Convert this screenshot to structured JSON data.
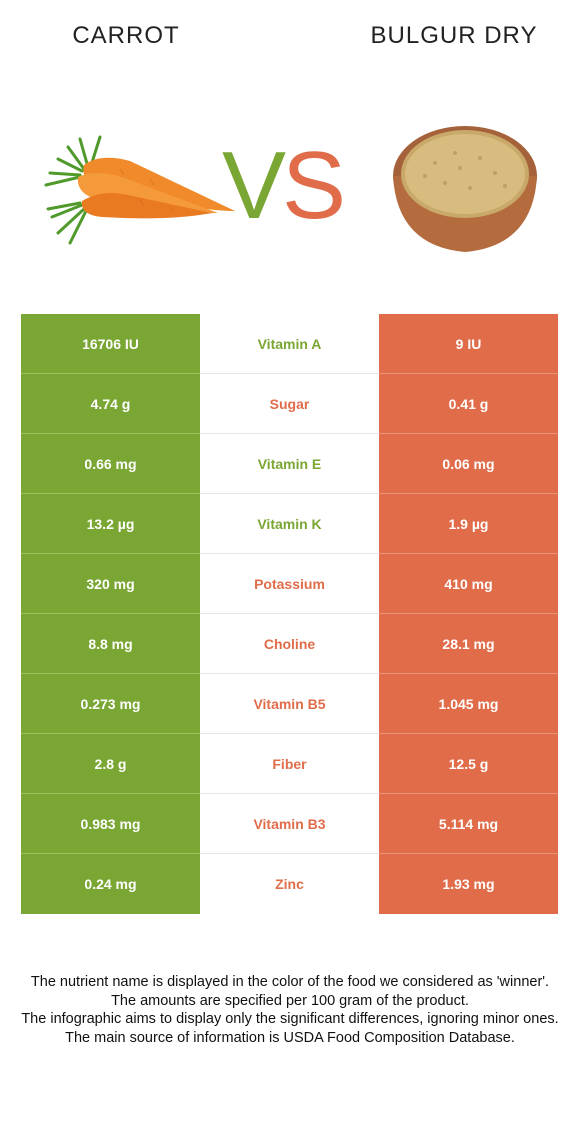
{
  "header": {
    "left_title": "CARROT",
    "right_title": "BULGUR DRY",
    "vs_v": "V",
    "vs_s": "S"
  },
  "colors": {
    "winner_left": "#7aa634",
    "winner_right": "#e06c4a"
  },
  "rows": [
    {
      "left": "16706 IU",
      "nutrient": "Vitamin A",
      "right": "9 IU",
      "winner": "left"
    },
    {
      "left": "4.74 g",
      "nutrient": "Sugar",
      "right": "0.41 g",
      "winner": "right"
    },
    {
      "left": "0.66 mg",
      "nutrient": "Vitamin E",
      "right": "0.06 mg",
      "winner": "left"
    },
    {
      "left": "13.2 µg",
      "nutrient": "Vitamin K",
      "right": "1.9 µg",
      "winner": "left"
    },
    {
      "left": "320 mg",
      "nutrient": "Potassium",
      "right": "410 mg",
      "winner": "right"
    },
    {
      "left": "8.8 mg",
      "nutrient": "Choline",
      "right": "28.1 mg",
      "winner": "right"
    },
    {
      "left": "0.273 mg",
      "nutrient": "Vitamin B5",
      "right": "1.045 mg",
      "winner": "right"
    },
    {
      "left": "2.8 g",
      "nutrient": "Fiber",
      "right": "12.5 g",
      "winner": "right"
    },
    {
      "left": "0.983 mg",
      "nutrient": "Vitamin B3",
      "right": "5.114 mg",
      "winner": "right"
    },
    {
      "left": "0.24 mg",
      "nutrient": "Zinc",
      "right": "1.93 mg",
      "winner": "right"
    }
  ],
  "footer": {
    "line1": "The nutrient name is displayed in the color of the food we considered as 'winner'.",
    "line2": "The amounts are specified per 100 gram of the product.",
    "line3": "The infographic aims to display only the significant differences, ignoring minor ones.",
    "line4": "The main source of information is USDA Food Composition Database."
  }
}
